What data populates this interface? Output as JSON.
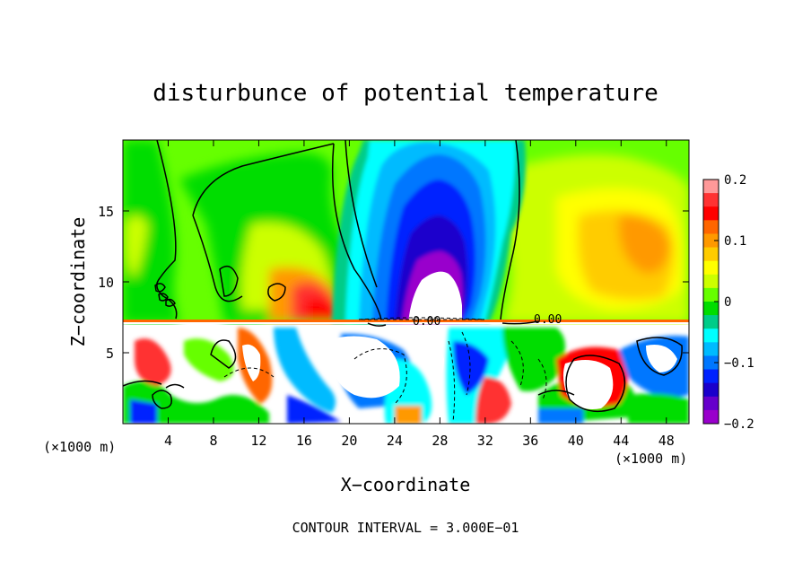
{
  "chart_data": {
    "type": "heatmap",
    "title": "disturbunce of potential temperature",
    "xlabel": "X−coordinate",
    "ylabel": "Z−coordinate",
    "x_unit_left": "(×1000 m)",
    "x_unit_right": "(×1000 m)",
    "xlim": [
      0,
      50
    ],
    "ylim": [
      0,
      20
    ],
    "x_ticks": [
      4,
      8,
      12,
      16,
      20,
      24,
      28,
      32,
      36,
      40,
      44,
      48
    ],
    "y_ticks": [
      5,
      10,
      15
    ],
    "colorbar": {
      "range": [
        -0.2,
        0.2
      ],
      "tick_values": [
        0.2,
        0.1,
        0,
        -0.1,
        -0.2
      ],
      "tick_labels": [
        "0.2",
        "0.1",
        "0",
        "−0.1",
        "−0.2"
      ],
      "colors": [
        "#ff9999",
        "#ff3333",
        "#ff0000",
        "#ff6600",
        "#ff9900",
        "#ffcc00",
        "#ffff00",
        "#ccff00",
        "#66ff00",
        "#00dd00",
        "#00cc88",
        "#00ffff",
        "#00bbff",
        "#0077ff",
        "#0022ff",
        "#1a00cc",
        "#6600cc",
        "#9900cc"
      ]
    },
    "contour_label": "0.00",
    "contour_interval_label": "CONTOUR INTERVAL = 3.000E−01",
    "features": [
      {
        "description": "cold anomaly",
        "x_center": 28,
        "z_range": [
          7.5,
          19.5
        ],
        "min_value": -0.2
      },
      {
        "description": "warm anomaly",
        "x_center": 17.5,
        "z_range": [
          7.5,
          10
        ],
        "max_value": 0.2
      },
      {
        "description": "warm anomaly",
        "x_center": 44,
        "z_range": [
          10,
          16
        ],
        "max_value": 0.1
      }
    ]
  }
}
